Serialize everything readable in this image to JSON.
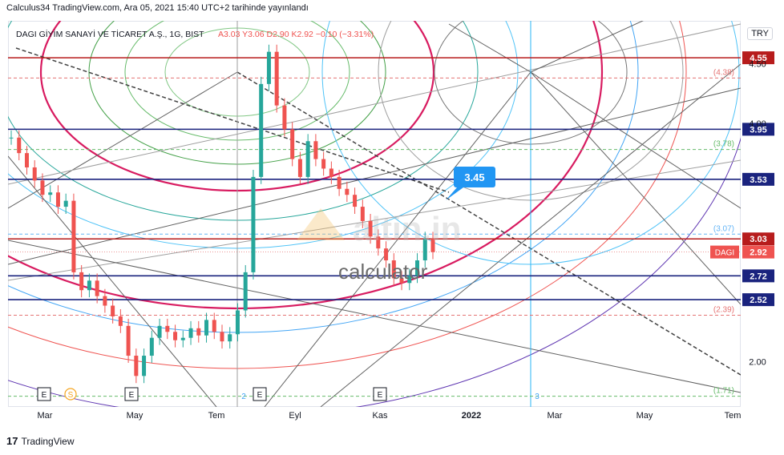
{
  "header": {
    "publish_line": "Calculus34 TradingView.com, Ara 05, 2021 15:40 UTC+2 tarihinde yayınlandı"
  },
  "legend": {
    "symbol": "DAGI GİYİM SANAYİ VE TİCARET A.Ş., 1G, BIST",
    "ohlc": "A3.03  Y3.06  D2.90  K2.92  −0.10 (−3.31%)"
  },
  "currency_button": "TRY",
  "footer": {
    "brand": "TradingView",
    "logo_glyph": "17"
  },
  "watermark": {
    "brand": "altin.in",
    "sub": "calculator"
  },
  "chart_data": {
    "type": "line",
    "title": "DAGI GİYİM SANAYİ VE TİCARET A.Ş., 1G, BIST",
    "ohlc_last": {
      "open": 3.03,
      "high": 3.06,
      "low": 2.9,
      "close": 2.92,
      "change": -0.1,
      "change_pct": -3.31
    },
    "x_ticks": [
      "Mar",
      "May",
      "Tem",
      "Eyl",
      "Kas",
      "2022",
      "Mar",
      "May",
      "Tem"
    ],
    "y_ticks": [
      "4.50",
      "4.00",
      "2.00"
    ],
    "ylim": [
      1.62,
      4.86
    ],
    "series": [
      {
        "values": [
          3.88,
          3.75,
          3.63,
          3.52,
          3.4,
          3.42,
          3.3,
          3.35,
          2.75,
          2.6,
          2.68,
          2.55,
          2.47,
          2.38,
          2.3,
          2.05,
          1.88,
          2.05,
          2.2,
          2.3,
          2.25,
          2.18,
          2.2,
          2.28,
          2.22,
          2.35,
          2.25,
          2.17,
          2.23,
          2.43,
          2.75,
          3.55,
          4.33,
          4.6,
          4.15,
          3.95,
          3.7,
          3.55,
          3.85,
          3.7,
          3.62,
          3.55,
          3.45,
          3.4,
          3.3,
          3.18,
          3.05,
          2.95,
          2.85,
          2.7,
          2.66,
          2.72,
          2.85,
          3.03,
          2.92
        ]
      }
    ],
    "horizontal_levels": [
      {
        "label": "4.55",
        "value": 4.55,
        "color": "#b71c1c"
      },
      {
        "label": "3.95",
        "value": 3.95,
        "color": "#1a237e"
      },
      {
        "label": "3.53",
        "value": 3.53,
        "color": "#1a237e"
      },
      {
        "label": "3.03",
        "value": 3.03,
        "color": "#b71c1c"
      },
      {
        "label": "2.72",
        "value": 2.72,
        "color": "#1a237e"
      },
      {
        "label": "2.52",
        "value": 2.52,
        "color": "#1a237e"
      }
    ],
    "dashed_levels": [
      {
        "label": "(4.38)",
        "value": 4.38,
        "color": "#e57373"
      },
      {
        "label": "(3.78)",
        "value": 3.78,
        "color": "#66bb6a"
      },
      {
        "label": "(3.07)",
        "value": 3.07,
        "color": "#64b5f6"
      },
      {
        "label": "(2.39)",
        "value": 2.39,
        "color": "#e57373"
      },
      {
        "label": "(1.71)",
        "value": 1.71,
        "color": "#66bb6a"
      }
    ],
    "price_tag": {
      "symbol": "DAGI",
      "value": "2.92"
    },
    "callout": {
      "value": "3.45"
    },
    "event_markers": [
      "E",
      "S",
      "E",
      "2",
      "E",
      "E",
      "3"
    ]
  }
}
